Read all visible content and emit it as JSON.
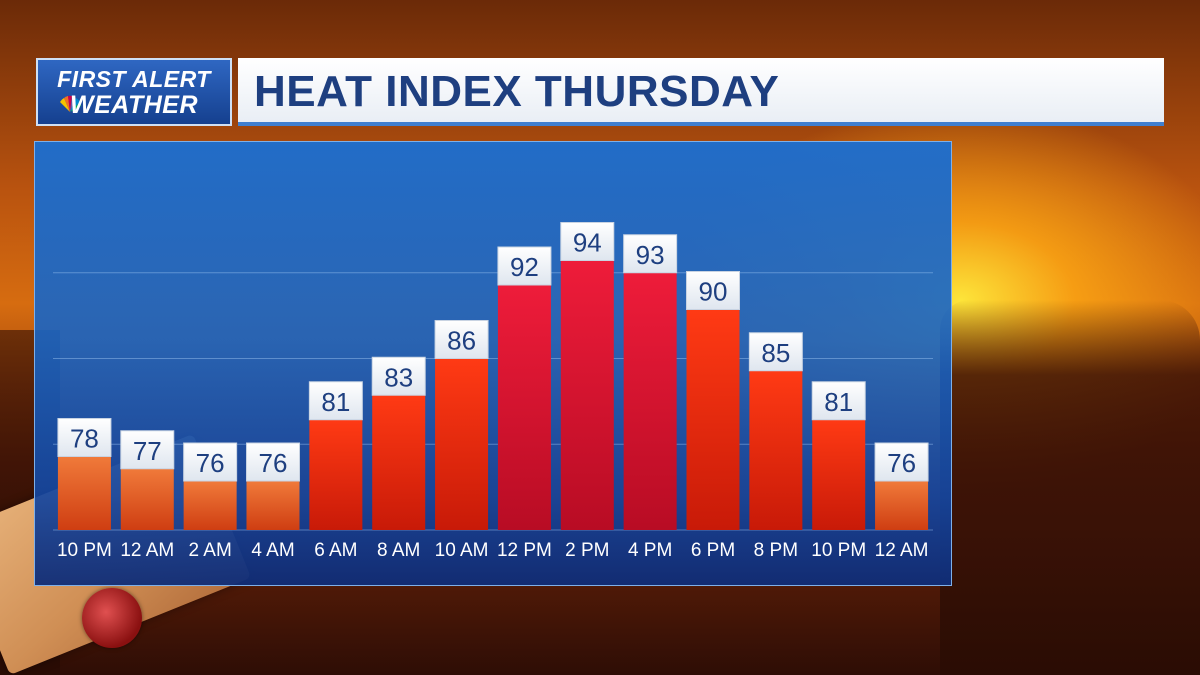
{
  "header": {
    "logo_line1": "FIRST ALERT",
    "logo_line2": "WEATHER",
    "title": "HEAT INDEX THURSDAY"
  },
  "colors": {
    "bar_warm": "#e6561c",
    "bar_hot": "#ee2a10",
    "bar_peak": "#e0183a",
    "label_box": "#ffffff",
    "label_text": "#1e3f80",
    "panel_blue": "#1f6bc8"
  },
  "icons": [
    "peacock-icon"
  ],
  "chart_data": {
    "type": "bar",
    "title": "HEAT INDEX THURSDAY",
    "categories": [
      "10 PM",
      "12 AM",
      "2 AM",
      "4 AM",
      "6 AM",
      "8 AM",
      "10 AM",
      "12 PM",
      "2 PM",
      "4 PM",
      "6 PM",
      "8 PM",
      "10 PM",
      "12 AM"
    ],
    "values": [
      78,
      77,
      76,
      76,
      81,
      83,
      86,
      92,
      94,
      93,
      90,
      85,
      81,
      76
    ],
    "data_labels": [
      "78",
      "77",
      "76",
      "76",
      "81",
      "83",
      "86",
      "92",
      "94",
      "93",
      "90",
      "85",
      "81",
      "76"
    ],
    "ylim": [
      72,
      100
    ],
    "grid": true,
    "legend": "none"
  }
}
